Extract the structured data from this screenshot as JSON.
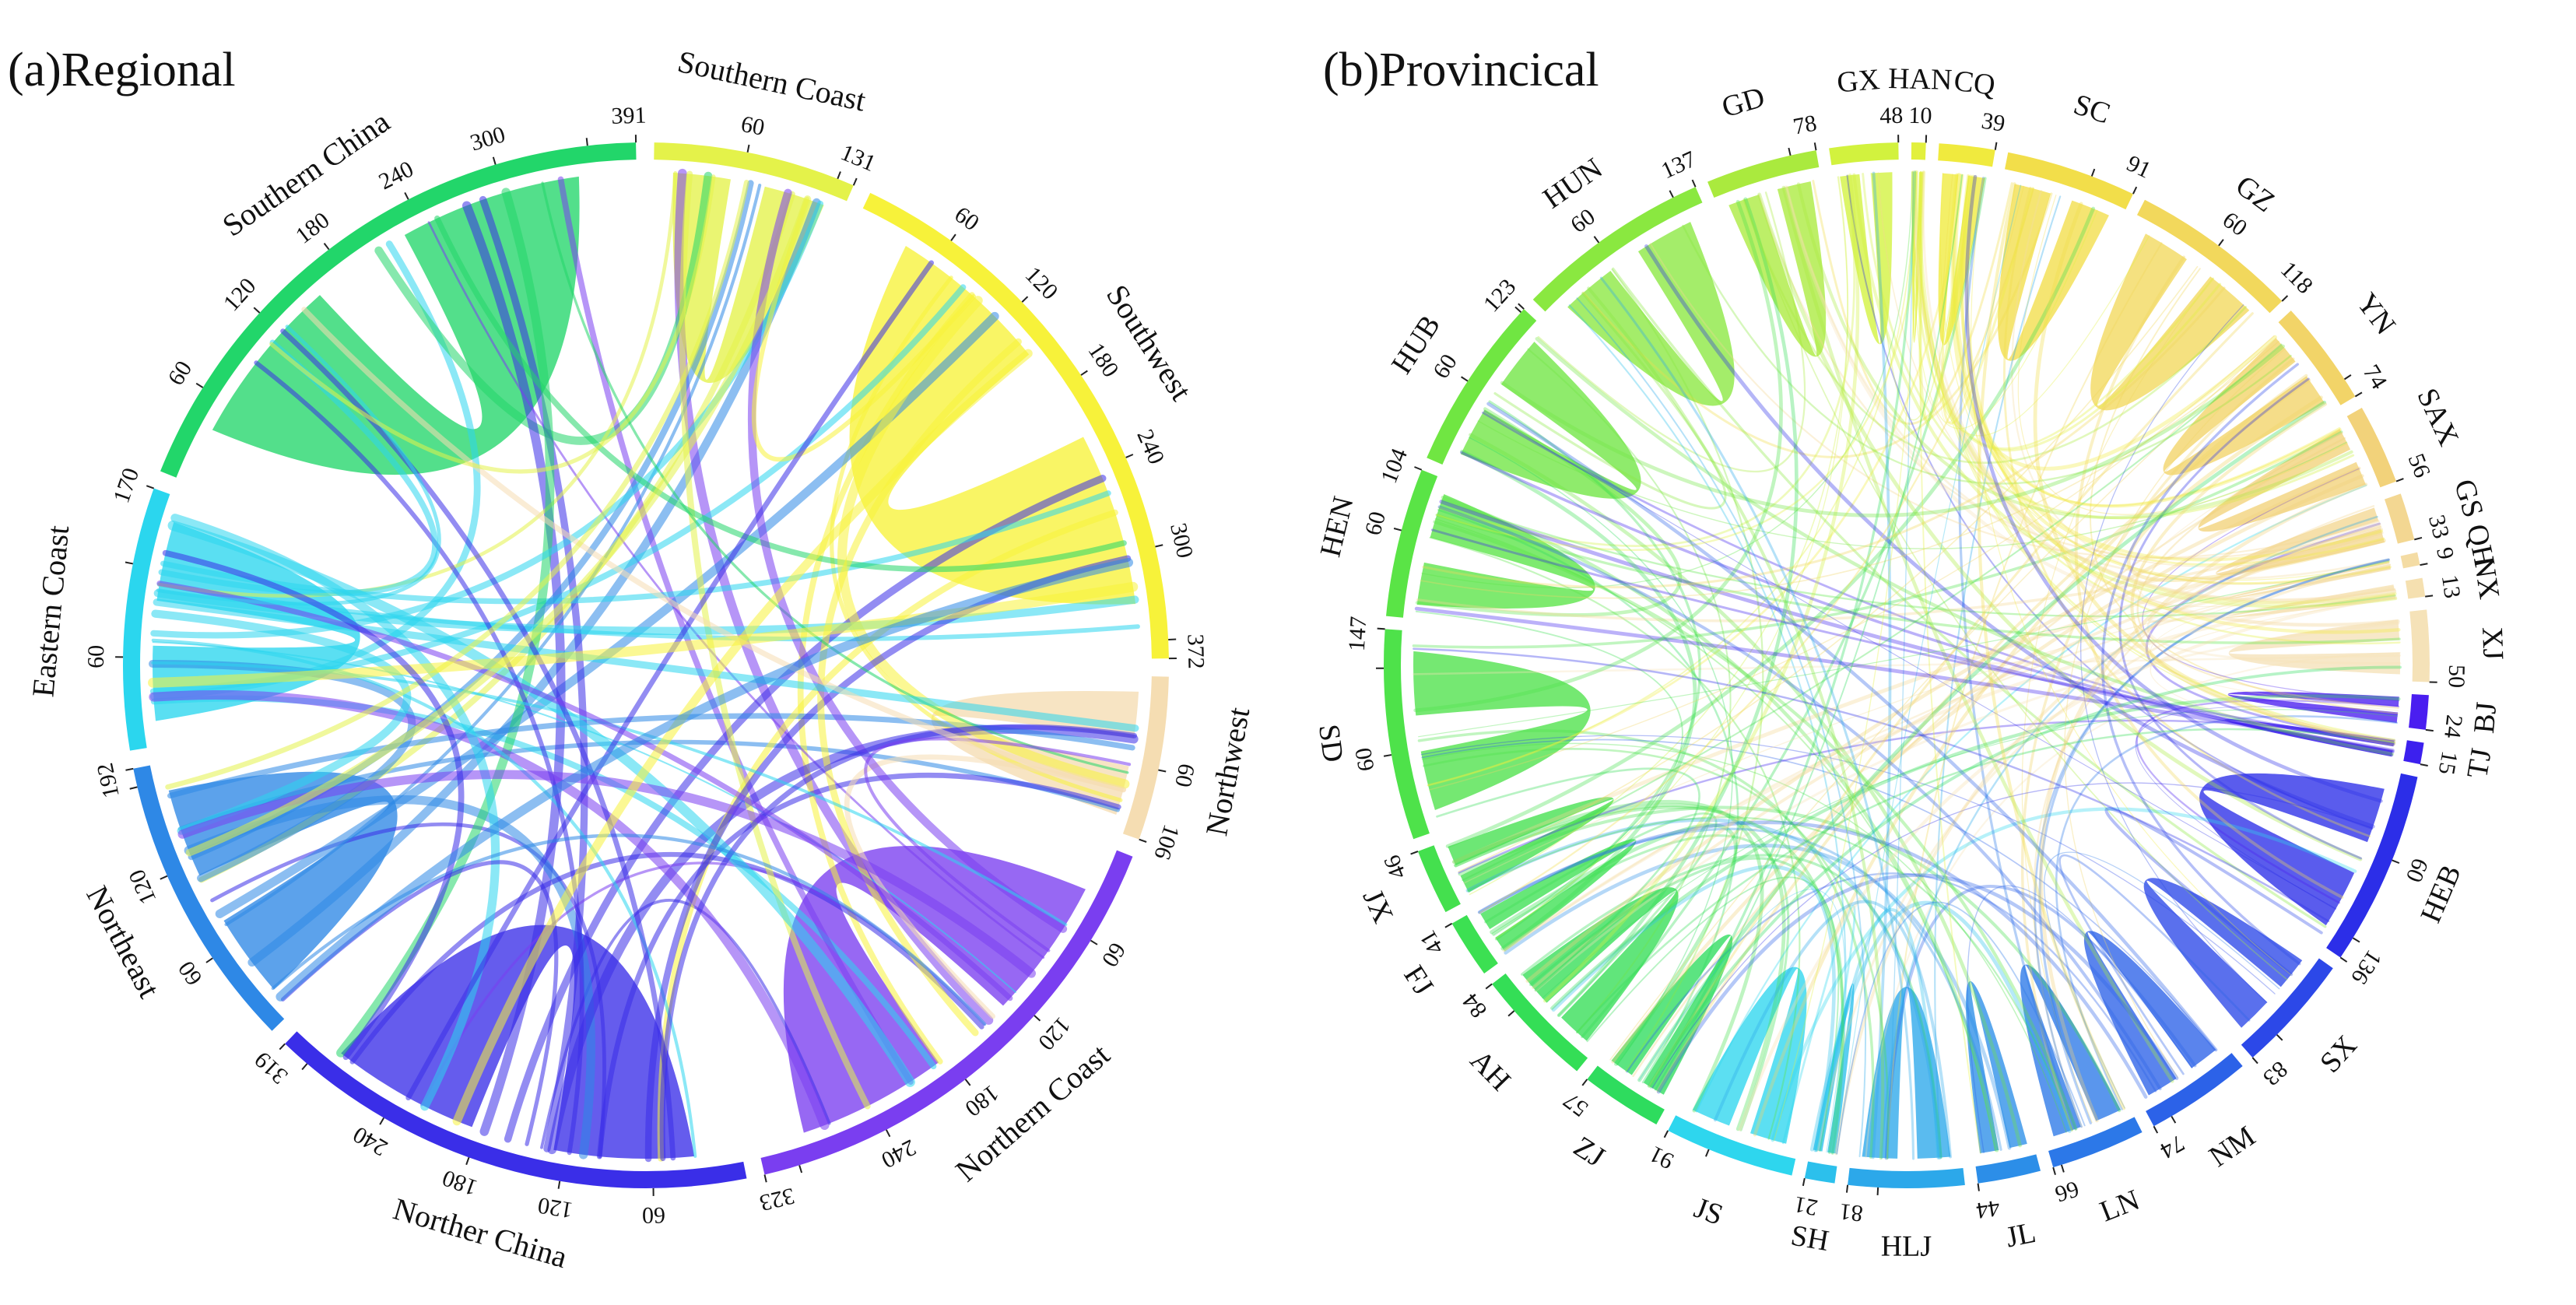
{
  "panels": [
    {
      "id": "regional",
      "title": "(a)Regional",
      "chart_data": {
        "type": "chord",
        "segments": [
          {
            "name": "Southern Coast",
            "total": 131,
            "color": "#e4f24a",
            "ticks": [
              "60",
              "131"
            ]
          },
          {
            "name": "Southwest",
            "total": 372,
            "color": "#f7f23a",
            "ticks": [
              "60",
              "120",
              "180",
              "240",
              "300",
              "372"
            ]
          },
          {
            "name": "Northwest",
            "total": 106,
            "color": "#f5ddb2",
            "ticks": [
              "60",
              "106"
            ]
          },
          {
            "name": "Northern Coast",
            "total": 323,
            "color": "#7a3ef0",
            "ticks": [
              "60",
              "120",
              "180",
              "240",
              "323"
            ]
          },
          {
            "name": "Norther China",
            "total": 319,
            "color": "#3a2ee8",
            "ticks": [
              "60",
              "120",
              "180",
              "240",
              "319"
            ]
          },
          {
            "name": "Northeast",
            "total": 192,
            "color": "#2e88e6",
            "ticks": [
              "60",
              "120",
              "192"
            ]
          },
          {
            "name": "Eastern Coast",
            "total": 170,
            "color": "#2bd6ee",
            "ticks": [
              "60",
              "170"
            ]
          },
          {
            "name": "Southern China",
            "total": 391,
            "color": "#22d66a",
            "ticks": [
              "60",
              "120",
              "180",
              "240",
              "300",
              "391"
            ]
          }
        ]
      }
    },
    {
      "id": "provincial",
      "title": "(b)Provincical",
      "chart_data": {
        "type": "chord",
        "segments": [
          {
            "name": "GX",
            "total": 48,
            "color": "#d2f23e",
            "ticks": [
              "48"
            ]
          },
          {
            "name": "HAN",
            "total": 10,
            "color": "#e2f03e",
            "ticks": [
              "10"
            ]
          },
          {
            "name": "CQ",
            "total": 39,
            "color": "#f0ea3e",
            "ticks": [
              "39"
            ]
          },
          {
            "name": "SC",
            "total": 91,
            "color": "#f2de4a",
            "ticks": [
              "91"
            ]
          },
          {
            "name": "GZ",
            "total": 118,
            "color": "#f2d85c",
            "ticks": [
              "60",
              "118"
            ]
          },
          {
            "name": "YN",
            "total": 74,
            "color": "#f2d468",
            "ticks": [
              "74"
            ]
          },
          {
            "name": "SAX",
            "total": 56,
            "color": "#f2d27a",
            "ticks": [
              "56"
            ]
          },
          {
            "name": "GS",
            "total": 33,
            "color": "#f3d792",
            "ticks": [
              "33"
            ]
          },
          {
            "name": "QH",
            "total": 9,
            "color": "#f4dca4",
            "ticks": [
              "9"
            ]
          },
          {
            "name": "NX",
            "total": 13,
            "color": "#f5e0b0",
            "ticks": [
              "13"
            ]
          },
          {
            "name": "XJ",
            "total": 50,
            "color": "#f5e2b8",
            "ticks": [
              "50"
            ]
          },
          {
            "name": "BJ",
            "total": 24,
            "color": "#4a1ef0",
            "ticks": [
              "24"
            ]
          },
          {
            "name": "TJ",
            "total": 15,
            "color": "#3c20ee",
            "ticks": [
              "15"
            ]
          },
          {
            "name": "HEB",
            "total": 136,
            "color": "#2c2ee8",
            "ticks": [
              "60",
              "136"
            ]
          },
          {
            "name": "SX",
            "total": 83,
            "color": "#2c48e8",
            "ticks": [
              "83"
            ]
          },
          {
            "name": "NM",
            "total": 74,
            "color": "#2c62e8",
            "ticks": [
              "74"
            ]
          },
          {
            "name": "LN",
            "total": 66,
            "color": "#2c78e8",
            "ticks": [
              "66"
            ]
          },
          {
            "name": "JL",
            "total": 44,
            "color": "#2c8ee8",
            "ticks": [
              "44"
            ]
          },
          {
            "name": "HLJ",
            "total": 81,
            "color": "#2ca8ea",
            "ticks": [
              "81"
            ]
          },
          {
            "name": "SH",
            "total": 21,
            "color": "#2cc0ec",
            "ticks": [
              "21"
            ]
          },
          {
            "name": "JS",
            "total": 91,
            "color": "#2ed6ee",
            "ticks": [
              "91"
            ]
          },
          {
            "name": "ZJ",
            "total": 57,
            "color": "#2edc5e",
            "ticks": [
              "57"
            ]
          },
          {
            "name": "AH",
            "total": 84,
            "color": "#34de56",
            "ticks": [
              "84"
            ]
          },
          {
            "name": "FJ",
            "total": 41,
            "color": "#3ce052",
            "ticks": [
              "41"
            ]
          },
          {
            "name": "JX",
            "total": 46,
            "color": "#44e04e",
            "ticks": [
              "46"
            ]
          },
          {
            "name": "SD",
            "total": 147,
            "color": "#4ee24a",
            "ticks": [
              "60",
              "147"
            ]
          },
          {
            "name": "HEN",
            "total": 104,
            "color": "#5ae446",
            "ticks": [
              "60",
              "104"
            ]
          },
          {
            "name": "HUB",
            "total": 123,
            "color": "#70e642",
            "ticks": [
              "60",
              "123"
            ]
          },
          {
            "name": "HUN",
            "total": 137,
            "color": "#8ae840",
            "ticks": [
              "60",
              "137"
            ]
          },
          {
            "name": "GD",
            "total": 78,
            "color": "#aaea3e",
            "ticks": [
              "78"
            ]
          }
        ]
      }
    }
  ]
}
